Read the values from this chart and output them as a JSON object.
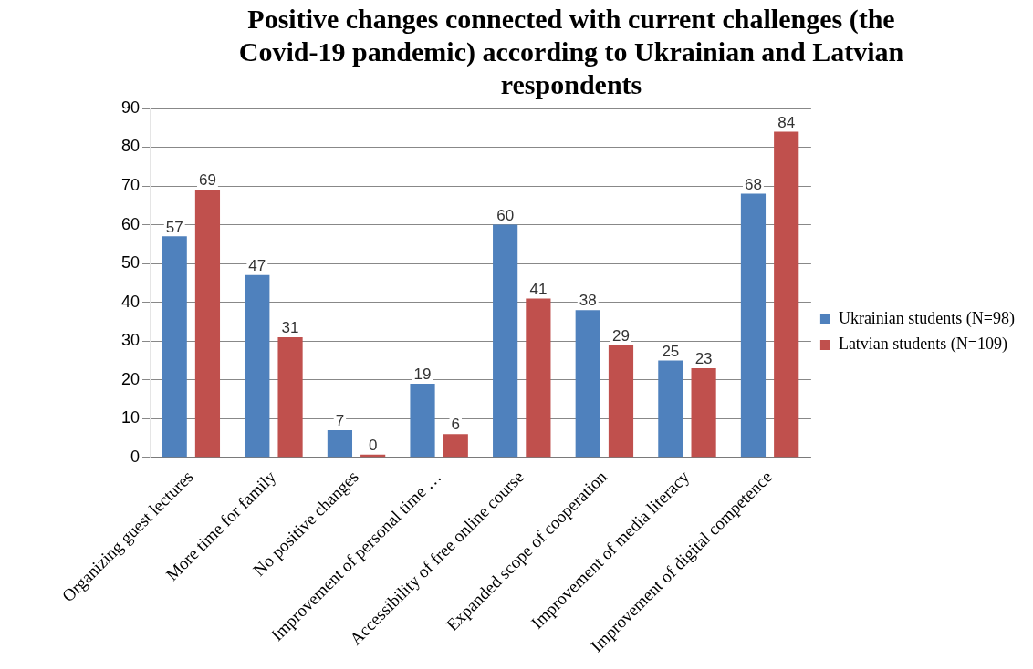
{
  "chart_data": {
    "type": "bar",
    "title": "Positive changes connected with current challenges (the Covid-19 pandemic) according to Ukrainian and Latvian respondents",
    "categories": [
      "Organizing guest lectures",
      "More time for family",
      "No positive changes",
      "Improvement of personal time …",
      "Accessibility of free online course",
      "Expanded scope of cooperation",
      "Improvement of media literacy",
      "Improvement of digital competence"
    ],
    "series": [
      {
        "name": "Ukrainian students (N=98)",
        "color": "#4f81bd",
        "values": [
          57,
          47,
          7,
          19,
          60,
          38,
          25,
          68
        ]
      },
      {
        "name": "Latvian students (N=109)",
        "color": "#c0504d",
        "values": [
          69,
          31,
          0,
          6,
          41,
          29,
          23,
          84
        ]
      }
    ],
    "ylim": [
      0,
      90
    ],
    "yticks": [
      0,
      10,
      20,
      30,
      40,
      50,
      60,
      70,
      80,
      90
    ],
    "grid": "y",
    "legend": "right",
    "data_labels": true
  }
}
